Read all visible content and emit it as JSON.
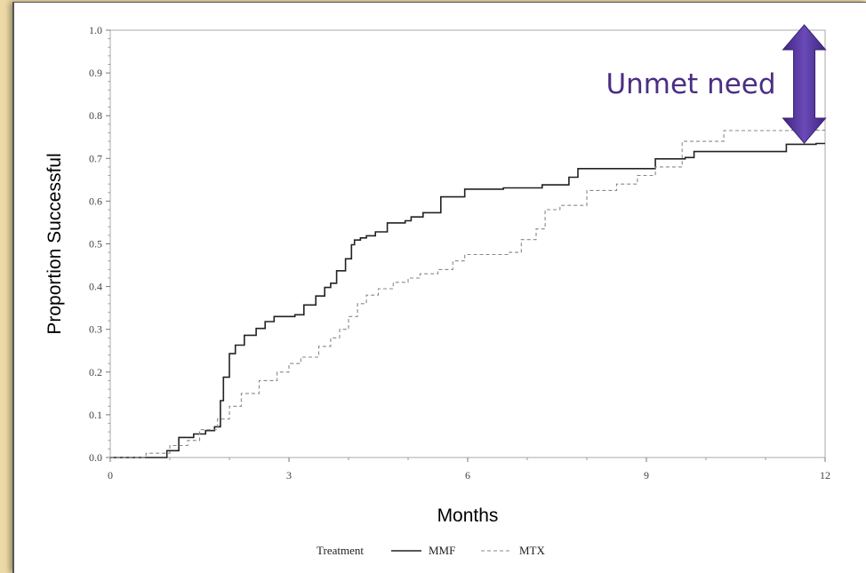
{
  "chart_data": {
    "type": "line",
    "xlabel": "Months",
    "ylabel": "Proportion  Successful",
    "xlim": [
      0,
      12
    ],
    "ylim": [
      0,
      1
    ],
    "xticks": [
      "0",
      "3",
      "6",
      "9",
      "12"
    ],
    "yticks": [
      "0.0",
      "0.1",
      "0.2",
      "0.3",
      "0.4",
      "0.5",
      "0.6",
      "0.7",
      "0.8",
      "0.9",
      "1.0"
    ],
    "grid": false,
    "legend": {
      "title": "Treatment",
      "placement": "bottom"
    },
    "series": [
      {
        "name": "MMF",
        "style": "solid",
        "color": "#222222",
        "x": [
          0,
          0.95,
          1.15,
          1.4,
          1.6,
          1.75,
          1.85,
          1.9,
          2.0,
          2.1,
          2.25,
          2.45,
          2.6,
          2.75,
          2.9,
          3.1,
          3.25,
          3.45,
          3.6,
          3.7,
          3.8,
          3.95,
          4.05,
          4.1,
          4.2,
          4.3,
          4.45,
          4.65,
          4.95,
          5.05,
          5.25,
          5.55,
          5.95,
          6.6,
          7.25,
          7.7,
          7.85,
          9.15,
          9.65,
          9.8,
          11.35,
          11.85,
          12.0
        ],
        "y": [
          0.0,
          0.016,
          0.047,
          0.055,
          0.063,
          0.072,
          0.133,
          0.188,
          0.243,
          0.263,
          0.286,
          0.302,
          0.318,
          0.33,
          0.33,
          0.334,
          0.357,
          0.378,
          0.398,
          0.408,
          0.437,
          0.465,
          0.498,
          0.509,
          0.514,
          0.519,
          0.528,
          0.549,
          0.554,
          0.563,
          0.573,
          0.61,
          0.628,
          0.631,
          0.638,
          0.656,
          0.676,
          0.699,
          0.702,
          0.716,
          0.733,
          0.735,
          0.735
        ]
      },
      {
        "name": "MTX",
        "style": "dashed",
        "color": "#888888",
        "x": [
          0,
          0.6,
          1.0,
          1.3,
          1.5,
          1.8,
          2.0,
          2.2,
          2.5,
          2.8,
          3.0,
          3.2,
          3.5,
          3.7,
          3.85,
          4.0,
          4.15,
          4.3,
          4.5,
          4.75,
          5.0,
          5.2,
          5.5,
          5.75,
          5.95,
          6.7,
          6.9,
          7.15,
          7.3,
          7.55,
          8.0,
          8.5,
          8.85,
          9.15,
          9.6,
          10.3,
          11.4,
          12.0
        ],
        "y": [
          0.0,
          0.01,
          0.028,
          0.04,
          0.065,
          0.09,
          0.12,
          0.15,
          0.18,
          0.2,
          0.22,
          0.235,
          0.26,
          0.28,
          0.3,
          0.33,
          0.36,
          0.38,
          0.395,
          0.41,
          0.42,
          0.43,
          0.44,
          0.46,
          0.475,
          0.48,
          0.51,
          0.535,
          0.58,
          0.59,
          0.625,
          0.64,
          0.66,
          0.68,
          0.74,
          0.765,
          0.766,
          0.766
        ]
      }
    ]
  },
  "annotation": {
    "text": "Unmet need",
    "arrow_color": "#5b3a9e",
    "arrow_top_y": 1.0,
    "arrow_bottom_y": 0.74,
    "arrow_x": 11.65
  }
}
